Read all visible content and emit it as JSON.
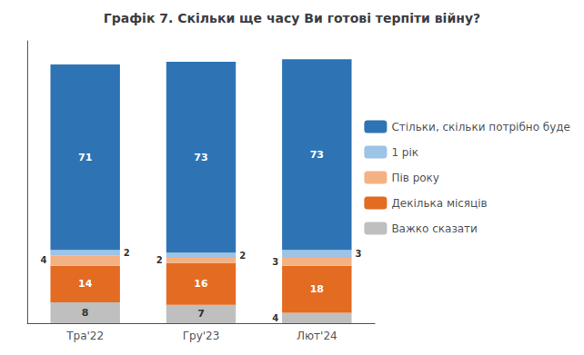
{
  "chart_data": {
    "type": "bar",
    "title": "Графік 7. Скільки ще часу Ви готові терпіти війну?",
    "categories": [
      "Тра'22",
      "Гру'23",
      "Лют'24"
    ],
    "series": [
      {
        "name": "Важко сказати",
        "color": "#BFBFBF",
        "values": [
          8,
          7,
          4
        ]
      },
      {
        "name": "Декілька місяців",
        "color": "#E36B22",
        "values": [
          14,
          16,
          18
        ]
      },
      {
        "name": "Пів року",
        "color": "#F4B183",
        "values": [
          4,
          2,
          3
        ]
      },
      {
        "name": "1 рік",
        "color": "#9DC3E6",
        "values": [
          2,
          2,
          3
        ]
      },
      {
        "name": "Стільки, скільки потрібно буде",
        "color": "#2E74B5",
        "values": [
          71,
          73,
          73
        ]
      }
    ],
    "ylim": [
      0,
      108
    ],
    "stacked": true,
    "data_labels": true,
    "legend": "right",
    "grid": false,
    "tick_labels": "x"
  }
}
